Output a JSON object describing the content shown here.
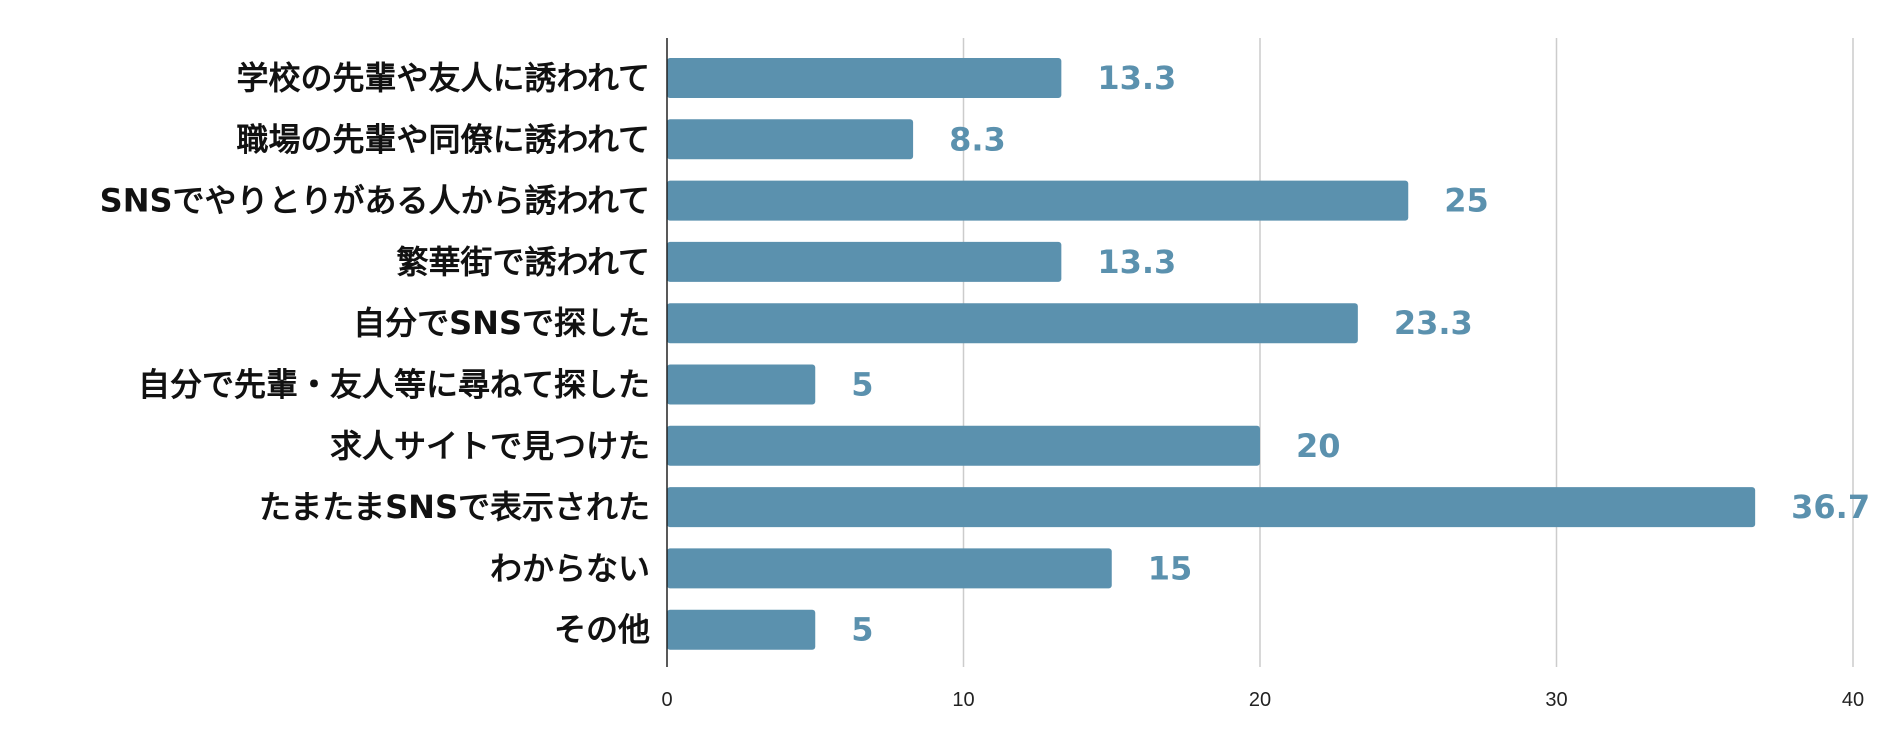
{
  "chart_data": {
    "type": "bar",
    "orientation": "horizontal",
    "categories": [
      "学校の先輩や友人に誘われて",
      "職場の先輩や同僚に誘われて",
      "SNSでやりとりがある人から誘われて",
      "繁華街で誘われて",
      "自分でSNSで探した",
      "自分で先輩・友人等に尋ねて探した",
      "求人サイトで見つけた",
      "たまたまSNSで表示された",
      "わからない",
      "その他"
    ],
    "values": [
      13.3,
      8.3,
      25,
      13.3,
      23.3,
      5,
      20,
      36.7,
      15,
      5
    ],
    "value_labels": [
      "13.3",
      "8.3",
      "25",
      "13.3",
      "23.3",
      "5",
      "20",
      "36.7",
      "15",
      "5"
    ],
    "xlim": [
      0,
      40
    ],
    "x_ticks": [
      0,
      10,
      20,
      30,
      40
    ],
    "x_tick_labels": [
      "0",
      "10",
      "20",
      "30",
      "40"
    ],
    "grid": "vertical",
    "legend": "none",
    "bar_color": "#5b91ae",
    "value_label_color": "#5b91ae"
  }
}
